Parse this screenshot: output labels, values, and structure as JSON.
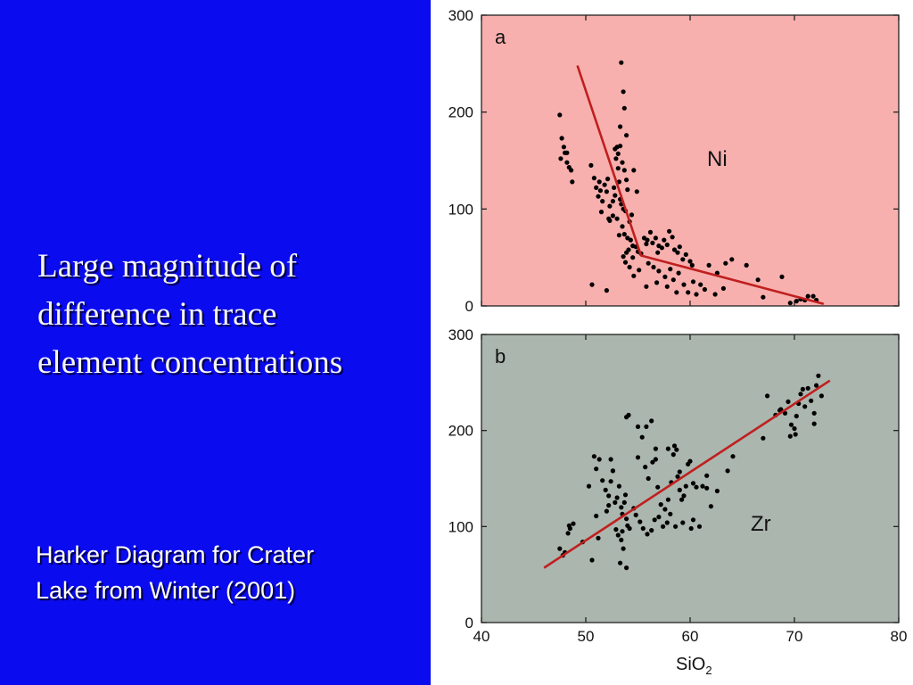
{
  "slide": {
    "heading_lines": [
      "Large magnitude of",
      "difference in trace",
      "element concentrations"
    ],
    "caption_lines": [
      "Harker Diagram for Crater",
      "Lake  from Winter (2001)"
    ],
    "colors": {
      "background": "#0b0bf0",
      "text": "#ffffff"
    }
  },
  "chart_data": [
    {
      "type": "scatter",
      "panel_label": "a",
      "element_label": "Ni",
      "x_axis": {
        "range": [
          40,
          80
        ],
        "ticks": [
          40,
          50,
          60,
          70,
          80
        ],
        "tick_labels_shown": false
      },
      "y_axis": {
        "range": [
          0,
          300
        ],
        "ticks": [
          0,
          100,
          200,
          300
        ]
      },
      "background_color": "#f7b0ae",
      "marker_color": "#000000",
      "trend_color": "#c01f1f",
      "trend_line": [
        [
          49.2,
          248
        ],
        [
          55.3,
          52
        ],
        [
          72.8,
          2
        ]
      ],
      "points": [
        [
          47.5,
          197
        ],
        [
          47.7,
          173
        ],
        [
          47.9,
          164
        ],
        [
          48.0,
          158
        ],
        [
          47.6,
          152
        ],
        [
          48.2,
          148
        ],
        [
          48.4,
          143
        ],
        [
          48.6,
          140
        ],
        [
          48.7,
          128
        ],
        [
          48.2,
          158
        ],
        [
          50.5,
          145
        ],
        [
          50.8,
          132
        ],
        [
          51.0,
          122
        ],
        [
          51.2,
          113
        ],
        [
          51.4,
          119
        ],
        [
          51.6,
          108
        ],
        [
          51.8,
          125
        ],
        [
          52.0,
          118
        ],
        [
          52.1,
          131
        ],
        [
          52.3,
          103
        ],
        [
          51.5,
          97
        ],
        [
          52.3,
          88
        ],
        [
          52.6,
          93
        ],
        [
          52.2,
          90
        ],
        [
          52.8,
          162
        ],
        [
          53.0,
          164
        ],
        [
          53.3,
          165
        ],
        [
          53.5,
          148
        ],
        [
          53.1,
          157
        ],
        [
          53.7,
          140
        ],
        [
          52.7,
          122
        ],
        [
          53.2,
          128
        ],
        [
          53.3,
          110
        ],
        [
          53.4,
          105
        ],
        [
          53.6,
          100
        ],
        [
          53.8,
          98
        ],
        [
          54.0,
          120
        ],
        [
          54.2,
          87
        ],
        [
          53.5,
          82
        ],
        [
          53.7,
          74
        ],
        [
          54.0,
          70
        ],
        [
          54.3,
          68
        ],
        [
          54.5,
          62
        ],
        [
          54.1,
          58
        ],
        [
          53.9,
          55
        ],
        [
          53.6,
          51
        ],
        [
          53.8,
          45
        ],
        [
          54.2,
          40
        ],
        [
          54.5,
          50
        ],
        [
          54.8,
          61
        ],
        [
          53.4,
          251
        ],
        [
          53.6,
          221
        ],
        [
          53.7,
          204
        ],
        [
          53.3,
          185
        ],
        [
          53.9,
          176
        ],
        [
          53.1,
          142
        ],
        [
          52.9,
          152
        ],
        [
          54.6,
          140
        ],
        [
          54.9,
          118
        ],
        [
          53.2,
          73
        ],
        [
          55.0,
          56
        ],
        [
          55.3,
          54
        ],
        [
          55.6,
          70
        ],
        [
          55.9,
          68
        ],
        [
          56.2,
          76
        ],
        [
          56.4,
          65
        ],
        [
          56.7,
          70
        ],
        [
          57.0,
          62
        ],
        [
          57.3,
          60
        ],
        [
          57.5,
          68
        ],
        [
          57.8,
          63
        ],
        [
          58.0,
          77
        ],
        [
          58.3,
          71
        ],
        [
          58.5,
          58
        ],
        [
          58.8,
          55
        ],
        [
          59.0,
          61
        ],
        [
          59.3,
          48
        ],
        [
          59.6,
          53
        ],
        [
          60.0,
          46
        ],
        [
          60.2,
          42
        ],
        [
          56.0,
          44
        ],
        [
          56.5,
          40
        ],
        [
          57.0,
          36
        ],
        [
          57.6,
          30
        ],
        [
          58.1,
          38
        ],
        [
          58.4,
          27
        ],
        [
          58.9,
          34
        ],
        [
          59.4,
          22
        ],
        [
          60.3,
          25
        ],
        [
          61.0,
          22
        ],
        [
          61.8,
          42
        ],
        [
          62.6,
          34
        ],
        [
          63.4,
          44
        ],
        [
          64.0,
          48
        ],
        [
          65.4,
          42
        ],
        [
          66.5,
          27
        ],
        [
          67.0,
          9
        ],
        [
          68.8,
          30
        ],
        [
          69.6,
          3
        ],
        [
          70.2,
          5
        ],
        [
          70.6,
          7
        ],
        [
          71.0,
          6
        ],
        [
          71.3,
          10
        ],
        [
          71.8,
          10
        ],
        [
          72.1,
          6
        ],
        [
          55.8,
          20
        ],
        [
          56.8,
          24
        ],
        [
          57.8,
          20
        ],
        [
          58.7,
          14
        ],
        [
          59.8,
          14
        ],
        [
          60.6,
          12
        ],
        [
          61.4,
          17
        ],
        [
          62.4,
          12
        ],
        [
          63.2,
          18
        ],
        [
          52.0,
          16
        ],
        [
          50.6,
          22
        ],
        [
          55.1,
          37
        ],
        [
          54.6,
          31
        ],
        [
          52.6,
          108
        ],
        [
          51.3,
          128
        ],
        [
          52.8,
          114
        ],
        [
          53.9,
          130
        ],
        [
          54.4,
          94
        ],
        [
          53.0,
          90
        ],
        [
          55.8,
          64
        ],
        [
          56.9,
          55
        ]
      ]
    },
    {
      "type": "scatter",
      "panel_label": "b",
      "element_label": "Zr",
      "x_axis": {
        "range": [
          40,
          80
        ],
        "ticks": [
          40,
          50,
          60,
          70,
          80
        ],
        "tick_labels": [
          "40",
          "50",
          "60",
          "70",
          "80"
        ],
        "label": "SiO2",
        "label_main": "SiO",
        "label_subscript": "2"
      },
      "y_axis": {
        "range": [
          0,
          300
        ],
        "ticks": [
          0,
          100,
          200,
          300
        ]
      },
      "background_color": "#abb6ae",
      "marker_color": "#000000",
      "trend_color": "#c01f1f",
      "trend_line": [
        [
          46.0,
          57
        ],
        [
          73.4,
          252
        ]
      ],
      "points": [
        [
          47.5,
          77
        ],
        [
          47.8,
          70
        ],
        [
          48.0,
          73
        ],
        [
          48.3,
          93
        ],
        [
          48.5,
          98
        ],
        [
          48.8,
          103
        ],
        [
          48.4,
          101
        ],
        [
          50.8,
          173
        ],
        [
          51.0,
          160
        ],
        [
          51.3,
          170
        ],
        [
          51.6,
          148
        ],
        [
          51.9,
          138
        ],
        [
          52.2,
          132
        ],
        [
          52.4,
          147
        ],
        [
          52.6,
          158
        ],
        [
          52.8,
          125
        ],
        [
          53.0,
          130
        ],
        [
          53.2,
          142
        ],
        [
          53.4,
          120
        ],
        [
          53.5,
          113
        ],
        [
          53.7,
          125
        ],
        [
          53.9,
          108
        ],
        [
          54.0,
          101
        ],
        [
          54.2,
          98
        ],
        [
          52.9,
          97
        ],
        [
          53.1,
          91
        ],
        [
          53.4,
          86
        ],
        [
          53.6,
          77
        ],
        [
          53.3,
          62
        ],
        [
          53.9,
          57
        ],
        [
          54.1,
          216
        ],
        [
          53.9,
          214
        ],
        [
          55.0,
          204
        ],
        [
          55.4,
          193
        ],
        [
          55.8,
          204
        ],
        [
          56.3,
          210
        ],
        [
          55.0,
          172
        ],
        [
          55.7,
          162
        ],
        [
          56.0,
          150
        ],
        [
          56.4,
          167
        ],
        [
          56.7,
          170
        ],
        [
          56.9,
          141
        ],
        [
          57.2,
          123
        ],
        [
          57.6,
          118
        ],
        [
          57.9,
          128
        ],
        [
          58.2,
          146
        ],
        [
          58.4,
          175
        ],
        [
          58.7,
          180
        ],
        [
          58.8,
          152
        ],
        [
          59.0,
          138
        ],
        [
          59.2,
          128
        ],
        [
          59.4,
          132
        ],
        [
          59.6,
          142
        ],
        [
          59.8,
          165
        ],
        [
          60.0,
          168
        ],
        [
          60.3,
          145
        ],
        [
          60.6,
          141
        ],
        [
          61.2,
          142
        ],
        [
          61.6,
          140
        ],
        [
          62.0,
          121
        ],
        [
          54.8,
          112
        ],
        [
          55.2,
          105
        ],
        [
          55.5,
          98
        ],
        [
          55.9,
          92
        ],
        [
          56.3,
          96
        ],
        [
          56.6,
          107
        ],
        [
          57.0,
          110
        ],
        [
          57.4,
          100
        ],
        [
          57.8,
          104
        ],
        [
          58.1,
          113
        ],
        [
          58.6,
          100
        ],
        [
          59.3,
          104
        ],
        [
          60.3,
          107
        ],
        [
          60.9,
          100
        ],
        [
          60.1,
          98
        ],
        [
          63.6,
          158
        ],
        [
          64.1,
          173
        ],
        [
          67.0,
          192
        ],
        [
          67.4,
          236
        ],
        [
          68.2,
          216
        ],
        [
          68.6,
          221
        ],
        [
          69.1,
          218
        ],
        [
          69.4,
          230
        ],
        [
          69.7,
          206
        ],
        [
          70.0,
          202
        ],
        [
          70.2,
          215
        ],
        [
          70.4,
          228
        ],
        [
          70.6,
          238
        ],
        [
          70.8,
          243
        ],
        [
          71.0,
          225
        ],
        [
          71.3,
          244
        ],
        [
          71.6,
          231
        ],
        [
          71.9,
          218
        ],
        [
          72.1,
          247
        ],
        [
          72.3,
          257
        ],
        [
          72.6,
          236
        ],
        [
          71.9,
          207
        ],
        [
          70.1,
          196
        ],
        [
          69.6,
          194
        ],
        [
          68.7,
          222
        ],
        [
          52.4,
          170
        ],
        [
          52.6,
          158
        ],
        [
          50.3,
          142
        ],
        [
          52.2,
          122
        ],
        [
          51.0,
          111
        ],
        [
          49.7,
          84
        ],
        [
          50.6,
          65
        ],
        [
          51.2,
          88
        ],
        [
          53.5,
          95
        ],
        [
          52.0,
          116
        ],
        [
          53.8,
          133
        ],
        [
          54.6,
          119
        ],
        [
          56.7,
          181
        ],
        [
          57.9,
          181
        ],
        [
          58.5,
          184
        ],
        [
          59.0,
          157
        ],
        [
          61.6,
          153
        ],
        [
          62.6,
          137
        ]
      ]
    }
  ]
}
